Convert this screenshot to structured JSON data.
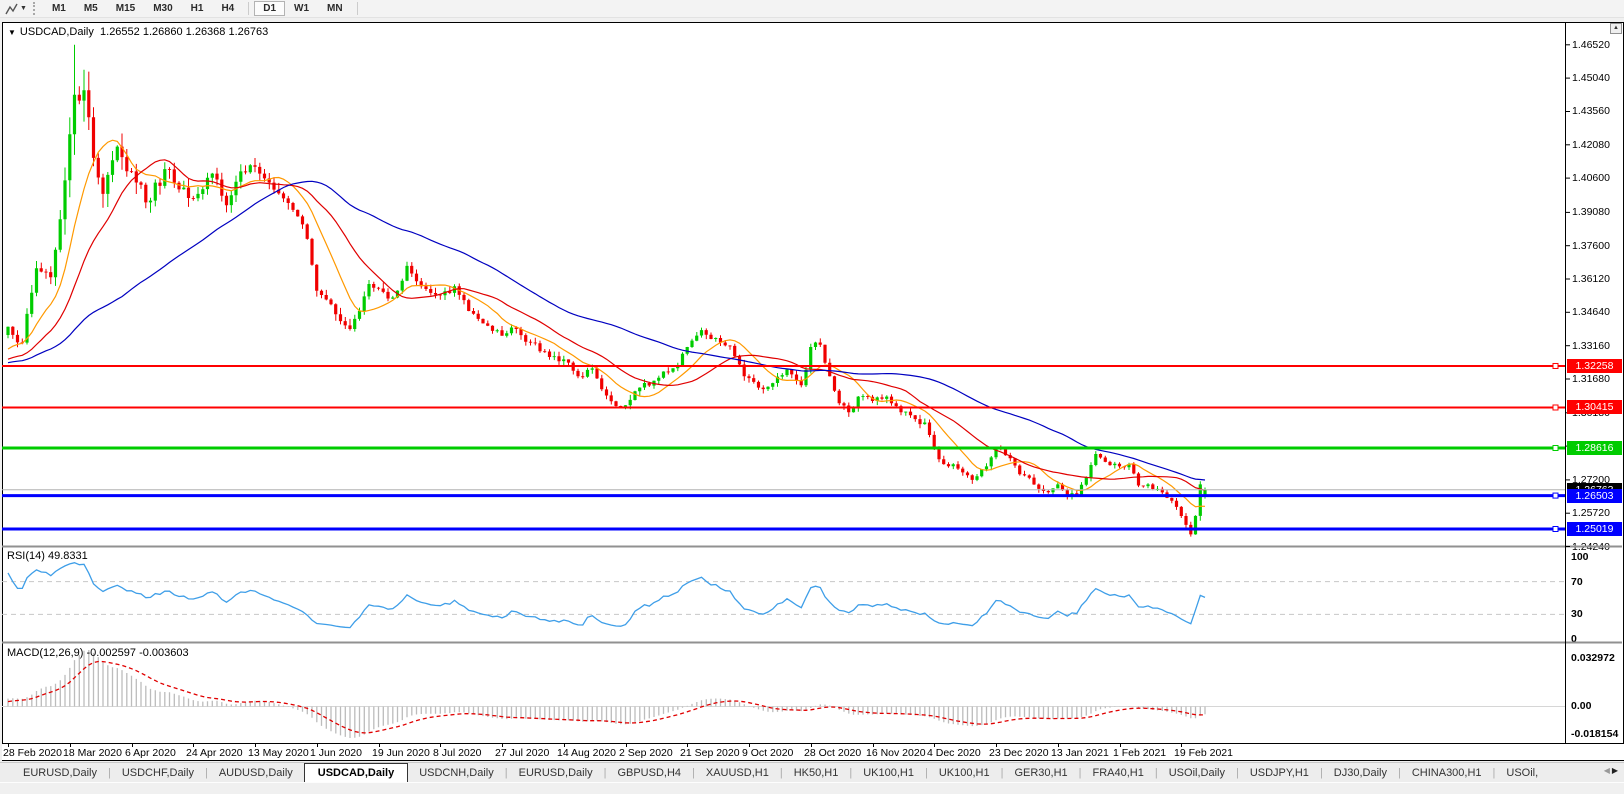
{
  "icons": {
    "chart_menu_collapse": "▼",
    "toolbar_caret": "▼",
    "scroll_up": "▲",
    "tab_scroll_left": "◀",
    "tab_scroll_right": "▶"
  },
  "toolbar": {
    "timeframes": [
      "M1",
      "M5",
      "M15",
      "M30",
      "H1",
      "H4",
      "D1",
      "W1",
      "MN"
    ],
    "active_timeframe": "D1",
    "separator_before": "D1"
  },
  "chart": {
    "title": {
      "symbol": "USDCAD,Daily",
      "values": "1.26552 1.26860 1.26368 1.26763"
    }
  },
  "tabs": {
    "active_index": 3,
    "items": [
      "EURUSD,Daily",
      "USDCHF,Daily",
      "AUDUSD,Daily",
      "USDCAD,Daily",
      "USDCNH,Daily",
      "EURUSD,Daily",
      "GBPUSD,H4",
      "XAUUSD,H1",
      "HK50,H1",
      "UK100,H1",
      "UK100,H1",
      "GER30,H1",
      "FRA40,H1",
      "USOil,Daily",
      "USDJPY,H1",
      "DJ30,Daily",
      "CHINA300,H1",
      "USOil,"
    ]
  },
  "chart_data": {
    "type": "candlestick",
    "symbol": "USDCAD",
    "timeframe": "Daily",
    "ohlc_display": [
      "1.26552",
      "1.26860",
      "1.26368",
      "1.26763"
    ],
    "candle_count": 253,
    "candles_per_x_label": 13,
    "x_labels": [
      "28 Feb 2020",
      "18 Mar 2020",
      "6 Apr 2020",
      "24 Apr 2020",
      "13 May 2020",
      "1 Jun 2020",
      "19 Jun 2020",
      "8 Jul 2020",
      "27 Jul 2020",
      "14 Aug 2020",
      "2 Sep 2020",
      "21 Sep 2020",
      "9 Oct 2020",
      "28 Oct 2020",
      "16 Nov 2020",
      "4 Dec 2020",
      "23 Dec 2020",
      "13 Jan 2021",
      "1 Feb 2021",
      "19 Feb 2021"
    ],
    "y_axis_ticks": [
      "1.46520",
      "1.45040",
      "1.43560",
      "1.42080",
      "1.40600",
      "1.39080",
      "1.37600",
      "1.36120",
      "1.34640",
      "1.33160",
      "1.31680",
      "1.30180",
      "1.28700",
      "1.27200",
      "1.25720",
      "1.24240"
    ],
    "price_range_shown": [
      1.2424,
      1.4652
    ],
    "price_anchors": [
      [
        -30,
        1.318,
        0.0045
      ],
      [
        -22,
        1.323,
        0.0045
      ],
      [
        -12,
        1.321,
        0.0045
      ],
      [
        -5,
        1.328,
        0.005
      ],
      [
        0,
        1.34,
        0.0055
      ],
      [
        3,
        1.333,
        0.006
      ],
      [
        6,
        1.366,
        0.0085
      ],
      [
        9,
        1.362,
        0.012
      ],
      [
        12,
        1.405,
        0.017
      ],
      [
        14,
        1.443,
        0.021
      ],
      [
        16,
        1.445,
        0.019
      ],
      [
        18,
        1.415,
        0.017
      ],
      [
        20,
        1.399,
        0.015
      ],
      [
        23,
        1.42,
        0.013
      ],
      [
        26,
        1.409,
        0.011
      ],
      [
        30,
        1.396,
        0.01
      ],
      [
        33,
        1.41,
        0.009
      ],
      [
        36,
        1.401,
        0.0085
      ],
      [
        39,
        1.397,
        0.008
      ],
      [
        43,
        1.408,
        0.0075
      ],
      [
        46,
        1.394,
        0.0072
      ],
      [
        49,
        1.409,
        0.007
      ],
      [
        52,
        1.411,
        0.0065
      ],
      [
        55,
        1.404,
        0.0062
      ],
      [
        58,
        1.397,
        0.006
      ],
      [
        61,
        1.389,
        0.0058
      ],
      [
        63,
        1.379,
        0.0058
      ],
      [
        65,
        1.356,
        0.0062
      ],
      [
        68,
        1.35,
        0.006
      ],
      [
        70,
        1.3425,
        0.006
      ],
      [
        72,
        1.339,
        0.0058
      ],
      [
        74,
        1.347,
        0.0058
      ],
      [
        76,
        1.359,
        0.0058
      ],
      [
        78,
        1.357,
        0.0055
      ],
      [
        81,
        1.353,
        0.0052
      ],
      [
        84,
        1.367,
        0.0052
      ],
      [
        87,
        1.358,
        0.005
      ],
      [
        91,
        1.354,
        0.0048
      ],
      [
        94,
        1.358,
        0.0046
      ],
      [
        97,
        1.347,
        0.0046
      ],
      [
        100,
        1.3415,
        0.0044
      ],
      [
        104,
        1.336,
        0.0042
      ],
      [
        107,
        1.339,
        0.0042
      ],
      [
        110,
        1.333,
        0.0042
      ],
      [
        113,
        1.329,
        0.0042
      ],
      [
        117,
        1.3255,
        0.0042
      ],
      [
        120,
        1.318,
        0.0042
      ],
      [
        123,
        1.3215,
        0.004
      ],
      [
        126,
        1.3095,
        0.004
      ],
      [
        129,
        1.3045,
        0.0042
      ],
      [
        131,
        1.3075,
        0.0046
      ],
      [
        133,
        1.313,
        0.0042
      ],
      [
        136,
        1.316,
        0.004
      ],
      [
        139,
        1.32,
        0.004
      ],
      [
        141,
        1.323,
        0.004
      ],
      [
        143,
        1.331,
        0.0042
      ],
      [
        146,
        1.3385,
        0.0042
      ],
      [
        149,
        1.335,
        0.004
      ],
      [
        152,
        1.3315,
        0.004
      ],
      [
        155,
        1.318,
        0.0042
      ],
      [
        158,
        1.313,
        0.004
      ],
      [
        161,
        1.315,
        0.0038
      ],
      [
        164,
        1.321,
        0.0038
      ],
      [
        167,
        1.314,
        0.0038
      ],
      [
        169,
        1.331,
        0.0044
      ],
      [
        171,
        1.332,
        0.0044
      ],
      [
        173,
        1.318,
        0.0044
      ],
      [
        175,
        1.306,
        0.0044
      ],
      [
        177,
        1.302,
        0.0042
      ],
      [
        179,
        1.309,
        0.004
      ],
      [
        182,
        1.307,
        0.0038
      ],
      [
        185,
        1.309,
        0.0038
      ],
      [
        188,
        1.302,
        0.0038
      ],
      [
        191,
        1.299,
        0.0038
      ],
      [
        193,
        1.2975,
        0.0038
      ],
      [
        195,
        1.286,
        0.004
      ],
      [
        197,
        1.279,
        0.0038
      ],
      [
        200,
        1.277,
        0.0036
      ],
      [
        203,
        1.272,
        0.0036
      ],
      [
        206,
        1.278,
        0.0036
      ],
      [
        208,
        1.2865,
        0.004
      ],
      [
        210,
        1.283,
        0.0036
      ],
      [
        213,
        1.2745,
        0.0036
      ],
      [
        215,
        1.273,
        0.0034
      ],
      [
        217,
        1.268,
        0.0034
      ],
      [
        219,
        1.2665,
        0.0034
      ],
      [
        221,
        1.27,
        0.0034
      ],
      [
        223,
        1.2645,
        0.0034
      ],
      [
        225,
        1.2655,
        0.0034
      ],
      [
        227,
        1.273,
        0.0034
      ],
      [
        229,
        1.2835,
        0.0038
      ],
      [
        231,
        1.28,
        0.0034
      ],
      [
        234,
        1.278,
        0.0034
      ],
      [
        236,
        1.279,
        0.0032
      ],
      [
        238,
        1.2695,
        0.0032
      ],
      [
        240,
        1.27,
        0.003
      ],
      [
        242,
        1.268,
        0.003
      ],
      [
        244,
        1.264,
        0.003
      ],
      [
        246,
        1.26,
        0.0032
      ],
      [
        248,
        1.252,
        0.0036
      ],
      [
        249,
        1.2478,
        0.004
      ],
      [
        250,
        1.256,
        0.004
      ],
      [
        251,
        1.27,
        0.0046
      ],
      [
        252,
        1.26763,
        0.003
      ]
    ],
    "wick_overrides": {
      "14": {
        "high": 1.4652
      },
      "249": {
        "low": 1.2468
      }
    },
    "last_candle": {
      "open": 1.26552,
      "high": 1.2686,
      "low": 1.26368,
      "close": 1.26763
    },
    "horizontal_lines": [
      {
        "label": "1.32258",
        "value": 1.32258,
        "color": "#ff0000",
        "width": 2
      },
      {
        "label": "1.30415",
        "value": 1.30415,
        "color": "#ff0000",
        "width": 2
      },
      {
        "label": "1.28616",
        "value": 1.28616,
        "color": "#00cc00",
        "width": 3
      },
      {
        "label": "1.26503",
        "value": 1.26503,
        "color": "#0000ff",
        "width": 3
      },
      {
        "label": "1.25019",
        "value": 1.25019,
        "color": "#0000ff",
        "width": 3
      }
    ],
    "current_price_line": {
      "label": "1.26763",
      "value": 1.26763,
      "line_color": "#b4b4b4",
      "tag_color": "#000000"
    },
    "moving_averages": [
      {
        "name": "ma-fast",
        "period": 10,
        "color": "#ff9900"
      },
      {
        "name": "ma-medium",
        "period": 21,
        "color": "#e00000"
      },
      {
        "name": "ma-slow",
        "period": 55,
        "color": "#0000c0"
      }
    ],
    "indicators": [
      {
        "name": "RSI",
        "label": "RSI(14) 49.8331",
        "value": 49.8331,
        "levels": [
          70,
          30
        ],
        "scale": [
          "100",
          "70",
          "30",
          "0"
        ],
        "color": "#3e9ee8",
        "range": [
          0,
          100
        ]
      },
      {
        "name": "MACD",
        "label": "MACD(12,26,9) -0.002597 -0.003603",
        "values": [
          -0.002597,
          -0.003603
        ],
        "scale": [
          "0.032972",
          "0.00",
          "-0.018154"
        ],
        "histogram_color": "#bcbcbc",
        "signal_color": "#e00000"
      }
    ],
    "colors": {
      "bull": "#00cc00",
      "bear": "#f00000",
      "background": "#ffffff",
      "axis_text": "#000000"
    },
    "seed": 77
  }
}
